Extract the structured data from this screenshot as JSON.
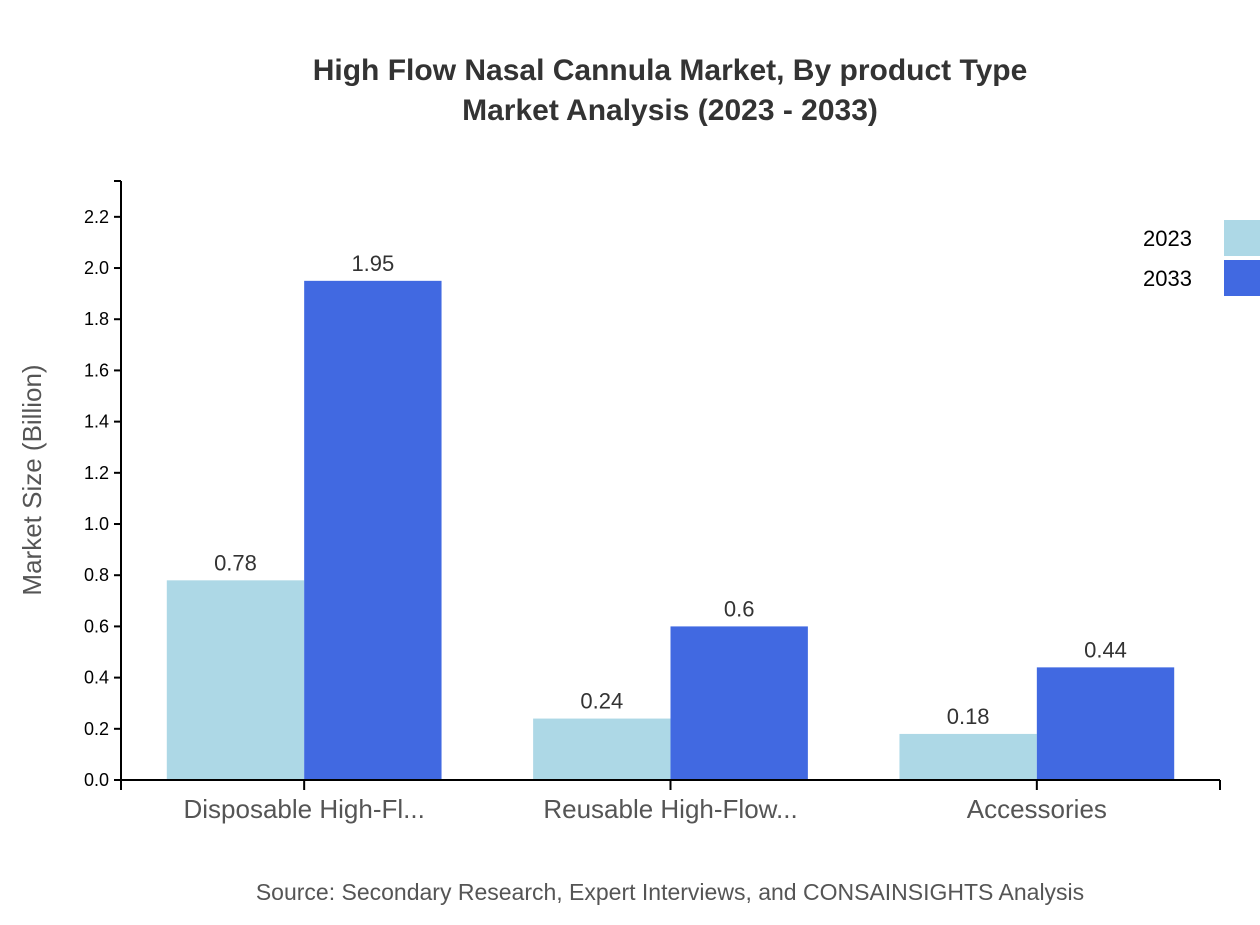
{
  "chart_data": {
    "type": "bar",
    "title": "High Flow Nasal Cannula Market, By product Type",
    "subtitle": "Market Analysis (2023 - 2033)",
    "xlabel": "",
    "ylabel": "Market Size (Billion)",
    "categories": [
      "Disposable High-Fl...",
      "Reusable High-Flow...",
      "Accessories"
    ],
    "series": [
      {
        "name": "2023",
        "values": [
          0.78,
          0.24,
          0.18
        ],
        "color": "#add8e6"
      },
      {
        "name": "2033",
        "values": [
          1.95,
          0.6,
          0.44
        ],
        "color": "#4169e1"
      }
    ],
    "ylim": [
      0,
      2.34
    ],
    "yticks": [
      "0.0",
      "0.2",
      "0.4",
      "0.6",
      "0.8",
      "1.0",
      "1.2",
      "1.4",
      "1.6",
      "1.8",
      "2.0",
      "2.2"
    ],
    "grid": false,
    "legend": "top-right",
    "source": "Source: Secondary Research, Expert Interviews, and CONSAINSIGHTS Analysis"
  }
}
